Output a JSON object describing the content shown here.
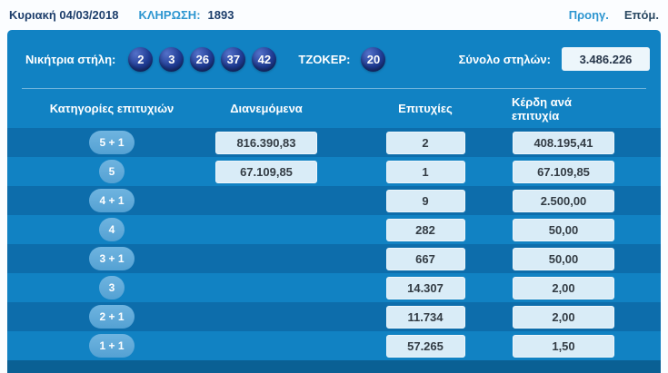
{
  "top_bar": {
    "date": "Κυριακή 04/03/2018",
    "draw_label": "ΚΛΗΡΩΣΗ:",
    "draw_number": "1893",
    "prev_label": "Προηγ.",
    "next_label": "Επόμ."
  },
  "panel": {
    "winning_label": "Νικήτρια στήλη:",
    "numbers": [
      "2",
      "3",
      "26",
      "37",
      "42"
    ],
    "joker_label": "ΤΖΟΚΕΡ:",
    "joker_number": "20",
    "total_label": "Σύνολο στηλών:",
    "total_value": "3.486.226",
    "table": {
      "headers": [
        "Κατηγορίες επιτυχιών",
        "Διανεμόμενα",
        "Επιτυχίες",
        "Κέρδη ανά επιτυχία"
      ],
      "rows": [
        {
          "category": "5 + 1",
          "distributed": "816.390,83",
          "hits": "2",
          "per_hit": "408.195,41"
        },
        {
          "category": "5",
          "distributed": "67.109,85",
          "hits": "1",
          "per_hit": "67.109,85"
        },
        {
          "category": "4 + 1",
          "distributed": "",
          "hits": "9",
          "per_hit": "2.500,00"
        },
        {
          "category": "4",
          "distributed": "",
          "hits": "282",
          "per_hit": "50,00"
        },
        {
          "category": "3 + 1",
          "distributed": "",
          "hits": "667",
          "per_hit": "50,00"
        },
        {
          "category": "3",
          "distributed": "",
          "hits": "14.307",
          "per_hit": "2,00"
        },
        {
          "category": "2 + 1",
          "distributed": "",
          "hits": "11.734",
          "per_hit": "2,00"
        },
        {
          "category": "1 + 1",
          "distributed": "",
          "hits": "57.265",
          "per_hit": "1,50"
        }
      ]
    }
  },
  "colors": {
    "panel_blue": "#1182c3",
    "row_stripe_blue": "#0d6dab",
    "footer_blue": "#0a6094",
    "ball_navy": "#1f3c94",
    "pill_light_blue": "#5fa9d9",
    "value_box_bg": "#d9ecf7",
    "link_blue": "#2d96d0",
    "dark_navy_text": "#1d3e6b"
  }
}
